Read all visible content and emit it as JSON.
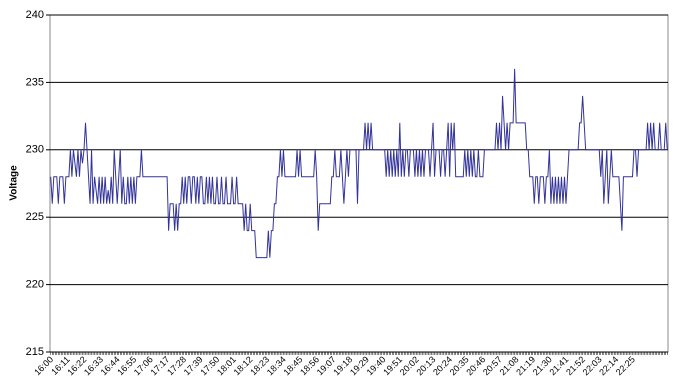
{
  "chart_data": {
    "type": "line",
    "y_label": "Voltage",
    "ylim": [
      215,
      240
    ],
    "yticks": [
      215,
      220,
      225,
      230,
      235,
      240
    ],
    "grid": true,
    "categories": [
      "16:00",
      null,
      null,
      null,
      null,
      null,
      null,
      null,
      null,
      null,
      null,
      "16:11",
      null,
      null,
      null,
      null,
      null,
      null,
      null,
      null,
      null,
      null,
      "16:22",
      null,
      null,
      null,
      null,
      null,
      null,
      null,
      null,
      null,
      null,
      "16:33",
      null,
      null,
      null,
      null,
      null,
      null,
      null,
      null,
      null,
      null,
      "16:44",
      null,
      null,
      null,
      null,
      null,
      null,
      null,
      null,
      null,
      null,
      "16:55",
      null,
      null,
      null,
      null,
      null,
      null,
      null,
      null,
      null,
      null,
      "17:06",
      null,
      null,
      null,
      null,
      null,
      null,
      null,
      null,
      null,
      null,
      "17:17",
      null,
      null,
      null,
      null,
      null,
      null,
      null,
      null,
      null,
      null,
      "17:28",
      null,
      null,
      null,
      null,
      null,
      null,
      null,
      null,
      null,
      null,
      "17:39",
      null,
      null,
      null,
      null,
      null,
      null,
      null,
      null,
      null,
      null,
      "17:50",
      null,
      null,
      null,
      null,
      null,
      null,
      null,
      null,
      null,
      null,
      "18:01",
      null,
      null,
      null,
      null,
      null,
      null,
      null,
      null,
      null,
      null,
      "18:12",
      null,
      null,
      null,
      null,
      null,
      null,
      null,
      null,
      null,
      null,
      "18:23",
      null,
      null,
      null,
      null,
      null,
      null,
      null,
      null,
      null,
      null,
      "18:34",
      null,
      null,
      null,
      null,
      null,
      null,
      null,
      null,
      null,
      null,
      "18:45",
      null,
      null,
      null,
      null,
      null,
      null,
      null,
      null,
      null,
      null,
      "18:56",
      null,
      null,
      null,
      null,
      null,
      null,
      null,
      null,
      null,
      null,
      "19:07",
      null,
      null,
      null,
      null,
      null,
      null,
      null,
      null,
      null,
      null,
      "19:18",
      null,
      null,
      null,
      null,
      null,
      null,
      null,
      null,
      null,
      null,
      "19:29",
      null,
      null,
      null,
      null,
      null,
      null,
      null,
      null,
      null,
      null,
      "19:40",
      null,
      null,
      null,
      null,
      null,
      null,
      null,
      null,
      null,
      null,
      "19:51",
      null,
      null,
      null,
      null,
      null,
      null,
      null,
      null,
      null,
      null,
      "20:02",
      null,
      null,
      null,
      null,
      null,
      null,
      null,
      null,
      null,
      null,
      "20:13",
      null,
      null,
      null,
      null,
      null,
      null,
      null,
      null,
      null,
      null,
      "20:24",
      null,
      null,
      null,
      null,
      null,
      null,
      null,
      null,
      null,
      null,
      "20:35",
      null,
      null,
      null,
      null,
      null,
      null,
      null,
      null,
      null,
      null,
      "20:46",
      null,
      null,
      null,
      null,
      null,
      null,
      null,
      null,
      null,
      null,
      "20:57",
      null,
      null,
      null,
      null,
      null,
      null,
      null,
      null,
      null,
      null,
      "21:08",
      null,
      null,
      null,
      null,
      null,
      null,
      null,
      null,
      null,
      null,
      "21:19",
      null,
      null,
      null,
      null,
      null,
      null,
      null,
      null,
      null,
      null,
      "21:30",
      null,
      null,
      null,
      null,
      null,
      null,
      null,
      null,
      null,
      null,
      "21:41",
      null,
      null,
      null,
      null,
      null,
      null,
      null,
      null,
      null,
      null,
      "21:52",
      null,
      null,
      null,
      null,
      null,
      null,
      null,
      null,
      null,
      null,
      "22:03",
      null,
      null,
      null,
      null,
      null,
      null,
      null,
      null,
      null,
      null,
      "22:14",
      null,
      null,
      null,
      null,
      null,
      null,
      null,
      null,
      null,
      null,
      "22:25",
      null,
      null,
      null,
      null,
      null,
      null,
      null,
      null,
      null,
      null,
      null,
      null,
      null,
      null,
      null,
      null,
      null,
      null,
      null,
      null,
      null,
      null,
      null
    ],
    "series": [
      {
        "color": "#33339a",
        "values": [
          228,
          226,
          228,
          228,
          228,
          226,
          228,
          228,
          228,
          226,
          228,
          228,
          228,
          230,
          228,
          230,
          229,
          228,
          230,
          228,
          230,
          229,
          230,
          232,
          230,
          228,
          226,
          230,
          226,
          228,
          227,
          226,
          228,
          226,
          228,
          226,
          228,
          226,
          227,
          226,
          228,
          226,
          230,
          228,
          226,
          228,
          230,
          226,
          228,
          226,
          226,
          228,
          226,
          228,
          226,
          228,
          226,
          228,
          228,
          228,
          230,
          228,
          228,
          228,
          228,
          228,
          228,
          228,
          228,
          228,
          228,
          228,
          228,
          228,
          228,
          228,
          228,
          228,
          224,
          226,
          226,
          226,
          224,
          226,
          224,
          226,
          226,
          228,
          226,
          228,
          226,
          228,
          228,
          226,
          228,
          228,
          226,
          228,
          226,
          228,
          228,
          226,
          226,
          228,
          226,
          228,
          226,
          228,
          226,
          226,
          228,
          226,
          226,
          228,
          226,
          226,
          228,
          226,
          226,
          226,
          228,
          226,
          226,
          228,
          226,
          226,
          226,
          226,
          224,
          226,
          224,
          224,
          226,
          224,
          224,
          224,
          222,
          222,
          222,
          222,
          222,
          222,
          222,
          222,
          224,
          222,
          224,
          224,
          226,
          226,
          228,
          228,
          230,
          228,
          230,
          228,
          228,
          228,
          228,
          228,
          228,
          228,
          228,
          230,
          228,
          230,
          228,
          228,
          228,
          228,
          228,
          228,
          228,
          228,
          228,
          230,
          228,
          224,
          226,
          226,
          226,
          226,
          226,
          226,
          226,
          226,
          228,
          228,
          230,
          228,
          228,
          228,
          230,
          228,
          226,
          228,
          230,
          228,
          230,
          230,
          230,
          230,
          230,
          226,
          230,
          230,
          230,
          230,
          232,
          230,
          232,
          230,
          232,
          230,
          230,
          230,
          230,
          230,
          230,
          230,
          230,
          230,
          228,
          230,
          228,
          230,
          228,
          230,
          228,
          230,
          228,
          232,
          228,
          230,
          228,
          230,
          230,
          228,
          230,
          230,
          230,
          228,
          230,
          228,
          230,
          228,
          230,
          228,
          230,
          230,
          230,
          228,
          230,
          232,
          228,
          230,
          230,
          230,
          228,
          230,
          230,
          228,
          230,
          232,
          228,
          232,
          230,
          232,
          228,
          228,
          228,
          228,
          228,
          228,
          230,
          228,
          230,
          228,
          230,
          228,
          230,
          228,
          228,
          230,
          228,
          228,
          228,
          230,
          230,
          230,
          230,
          230,
          230,
          230,
          230,
          232,
          230,
          232,
          230,
          234,
          232,
          230,
          232,
          230,
          232,
          232,
          232,
          236,
          232,
          232,
          232,
          232,
          232,
          232,
          232,
          230,
          230,
          228,
          228,
          228,
          226,
          228,
          228,
          226,
          228,
          228,
          228,
          226,
          228,
          228,
          230,
          226,
          228,
          226,
          228,
          226,
          228,
          226,
          228,
          226,
          228,
          226,
          228,
          230,
          230,
          230,
          230,
          230,
          230,
          230,
          232,
          232,
          234,
          232,
          230,
          230,
          230,
          230,
          230,
          230,
          230,
          230,
          230,
          230,
          228,
          230,
          226,
          228,
          230,
          226,
          228,
          230,
          228,
          228,
          228,
          228,
          228,
          226,
          224,
          228,
          228,
          228,
          228,
          228,
          228,
          228,
          230,
          230,
          228,
          230,
          230,
          230,
          230,
          230,
          230,
          232,
          230,
          232,
          230,
          232,
          230,
          230,
          230,
          232,
          230,
          230,
          230,
          232,
          230
        ]
      }
    ]
  }
}
